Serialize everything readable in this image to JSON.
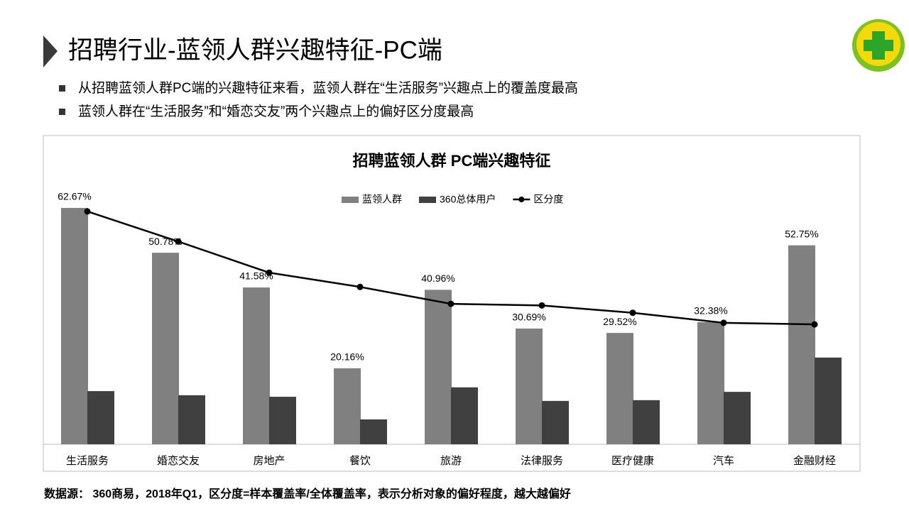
{
  "header": {
    "title": "招聘行业-蓝领人群兴趣特征-PC端",
    "bullets": [
      "从招聘蓝领人群PC端的兴趣特征来看，蓝领人群在“生活服务”兴趣点上的覆盖度最高",
      "蓝领人群在“生活服务”和“婚恋交友”两个兴趣点上的偏好区分度最高"
    ]
  },
  "chart_data": {
    "type": "bar",
    "title": "招聘蓝领人群 PC端兴趣特征",
    "categories": [
      "生活服务",
      "婚恋交友",
      "房地产",
      "餐饮",
      "旅游",
      "法律服务",
      "医疗健康",
      "汽车",
      "金融财经"
    ],
    "series": [
      {
        "name": "蓝领人群",
        "color": "#808080",
        "values": [
          62.67,
          50.78,
          41.58,
          20.16,
          40.96,
          30.69,
          29.52,
          32.38,
          52.75
        ],
        "value_labels": [
          "62.67%",
          "50.78%",
          "41.58%",
          "20.16%",
          "40.96%",
          "30.69%",
          "29.52%",
          "32.38%",
          "52.75%"
        ]
      },
      {
        "name": "360总体用户",
        "color": "#404040",
        "values": [
          14.1,
          13.0,
          12.6,
          6.6,
          15.1,
          11.5,
          11.7,
          13.9,
          23.0
        ]
      },
      {
        "name": "区分度",
        "type": "line",
        "axis": "y2",
        "color": "#000000",
        "values": [
          4.41,
          3.84,
          3.25,
          2.98,
          2.66,
          2.63,
          2.49,
          2.3,
          2.27
        ]
      }
    ],
    "ylim": [
      0,
      70
    ],
    "y2lim": [
      0,
      5
    ],
    "legend": "top"
  },
  "footer": "数据源： 360商易，2018年Q1，区分度=样本覆盖率/全体覆盖率，表示分析对象的偏好程度，越大越偏好"
}
